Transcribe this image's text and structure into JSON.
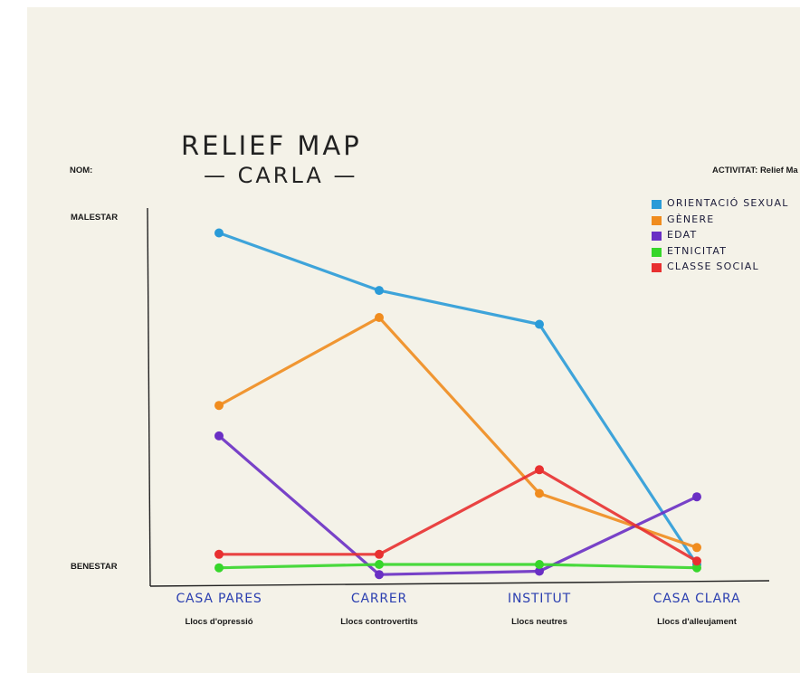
{
  "header": {
    "name_label": "NOM:",
    "activity_label": "ACTIVITAT: Relief Ma"
  },
  "chart_data": {
    "type": "line",
    "title_line1": "RELIEF MAP",
    "title_line2": "— CARLA —",
    "y_top_label": "MALESTAR",
    "y_bottom_label": "BENESTAR",
    "ylim": [
      0,
      100
    ],
    "grid": false,
    "legend_position": "top-right",
    "categories": [
      "CASA PARES",
      "CARRER",
      "INSTITUT",
      "CASA CLARA"
    ],
    "category_subtitles": [
      "Llocs d'opressió",
      "Llocs controvertits",
      "Llocs neutres",
      "Llocs d'alleujament"
    ],
    "series": [
      {
        "name": "ORIENTACIÓ SEXUAL",
        "color": "#2a9bd8",
        "values": [
          98,
          81,
          71,
          0
        ]
      },
      {
        "name": "GÈNERE",
        "color": "#f08c1e",
        "values": [
          47,
          73,
          21,
          5
        ]
      },
      {
        "name": "EDAT",
        "color": "#6a2fc4",
        "values": [
          38,
          -3,
          -2,
          20
        ]
      },
      {
        "name": "ETNICITAT",
        "color": "#36d62a",
        "values": [
          -1,
          0,
          0,
          -1
        ]
      },
      {
        "name": "CLASSE SOCIAL",
        "color": "#e83030",
        "values": [
          3,
          3,
          28,
          1
        ]
      }
    ]
  }
}
